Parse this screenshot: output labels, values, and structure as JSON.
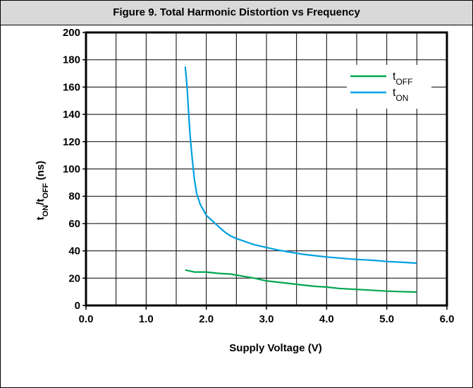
{
  "header": {
    "title": "Figure 9. Total Harmonic Distortion vs Frequency"
  },
  "chart_data": {
    "type": "line",
    "xlabel": "Supply Voltage (V)",
    "ylabel": {
      "t1": "t",
      "s1": "ON",
      "t2": "/t",
      "s2": "OFF",
      "t3": " (ns)"
    },
    "xlim": [
      0,
      6
    ],
    "ylim": [
      0,
      200
    ],
    "x_ticks": [
      "0.0",
      "1.0",
      "2.0",
      "3.0",
      "4.0",
      "5.0",
      "6.0"
    ],
    "y_ticks": [
      "0",
      "20",
      "40",
      "60",
      "80",
      "100",
      "120",
      "140",
      "160",
      "180",
      "200"
    ],
    "grid": true,
    "legend_position": "top-right",
    "series": [
      {
        "name_main": "t",
        "name_sub": "OFF",
        "color": "#00a651",
        "points": [
          [
            1.65,
            26
          ],
          [
            1.8,
            24.5
          ],
          [
            2.0,
            24.5
          ],
          [
            2.2,
            23.5
          ],
          [
            2.4,
            23
          ],
          [
            2.6,
            21.5
          ],
          [
            2.8,
            20
          ],
          [
            3.0,
            18
          ],
          [
            3.2,
            17
          ],
          [
            3.4,
            16
          ],
          [
            3.6,
            15
          ],
          [
            3.8,
            14
          ],
          [
            4.0,
            13.5
          ],
          [
            4.2,
            12.5
          ],
          [
            4.4,
            12
          ],
          [
            4.6,
            11.5
          ],
          [
            4.8,
            11
          ],
          [
            5.0,
            10.5
          ],
          [
            5.2,
            10.2
          ],
          [
            5.5,
            9.8
          ]
        ]
      },
      {
        "name_main": "t",
        "name_sub": "ON",
        "color": "#00a0e0",
        "points": [
          [
            1.65,
            175
          ],
          [
            1.68,
            160
          ],
          [
            1.7,
            145
          ],
          [
            1.73,
            125
          ],
          [
            1.76,
            110
          ],
          [
            1.8,
            93
          ],
          [
            1.84,
            82
          ],
          [
            1.9,
            74
          ],
          [
            2.0,
            66
          ],
          [
            2.1,
            62
          ],
          [
            2.2,
            58
          ],
          [
            2.3,
            54
          ],
          [
            2.4,
            51
          ],
          [
            2.5,
            49
          ],
          [
            2.6,
            47.5
          ],
          [
            2.7,
            46
          ],
          [
            2.8,
            44.5
          ],
          [
            3.0,
            42.5
          ],
          [
            3.2,
            40.5
          ],
          [
            3.4,
            39
          ],
          [
            3.6,
            37.5
          ],
          [
            3.8,
            36.5
          ],
          [
            4.0,
            35.5
          ],
          [
            4.2,
            34.8
          ],
          [
            4.4,
            34
          ],
          [
            4.6,
            33.5
          ],
          [
            4.8,
            33
          ],
          [
            5.0,
            32.2
          ],
          [
            5.2,
            31.8
          ],
          [
            5.5,
            31
          ]
        ]
      }
    ]
  }
}
